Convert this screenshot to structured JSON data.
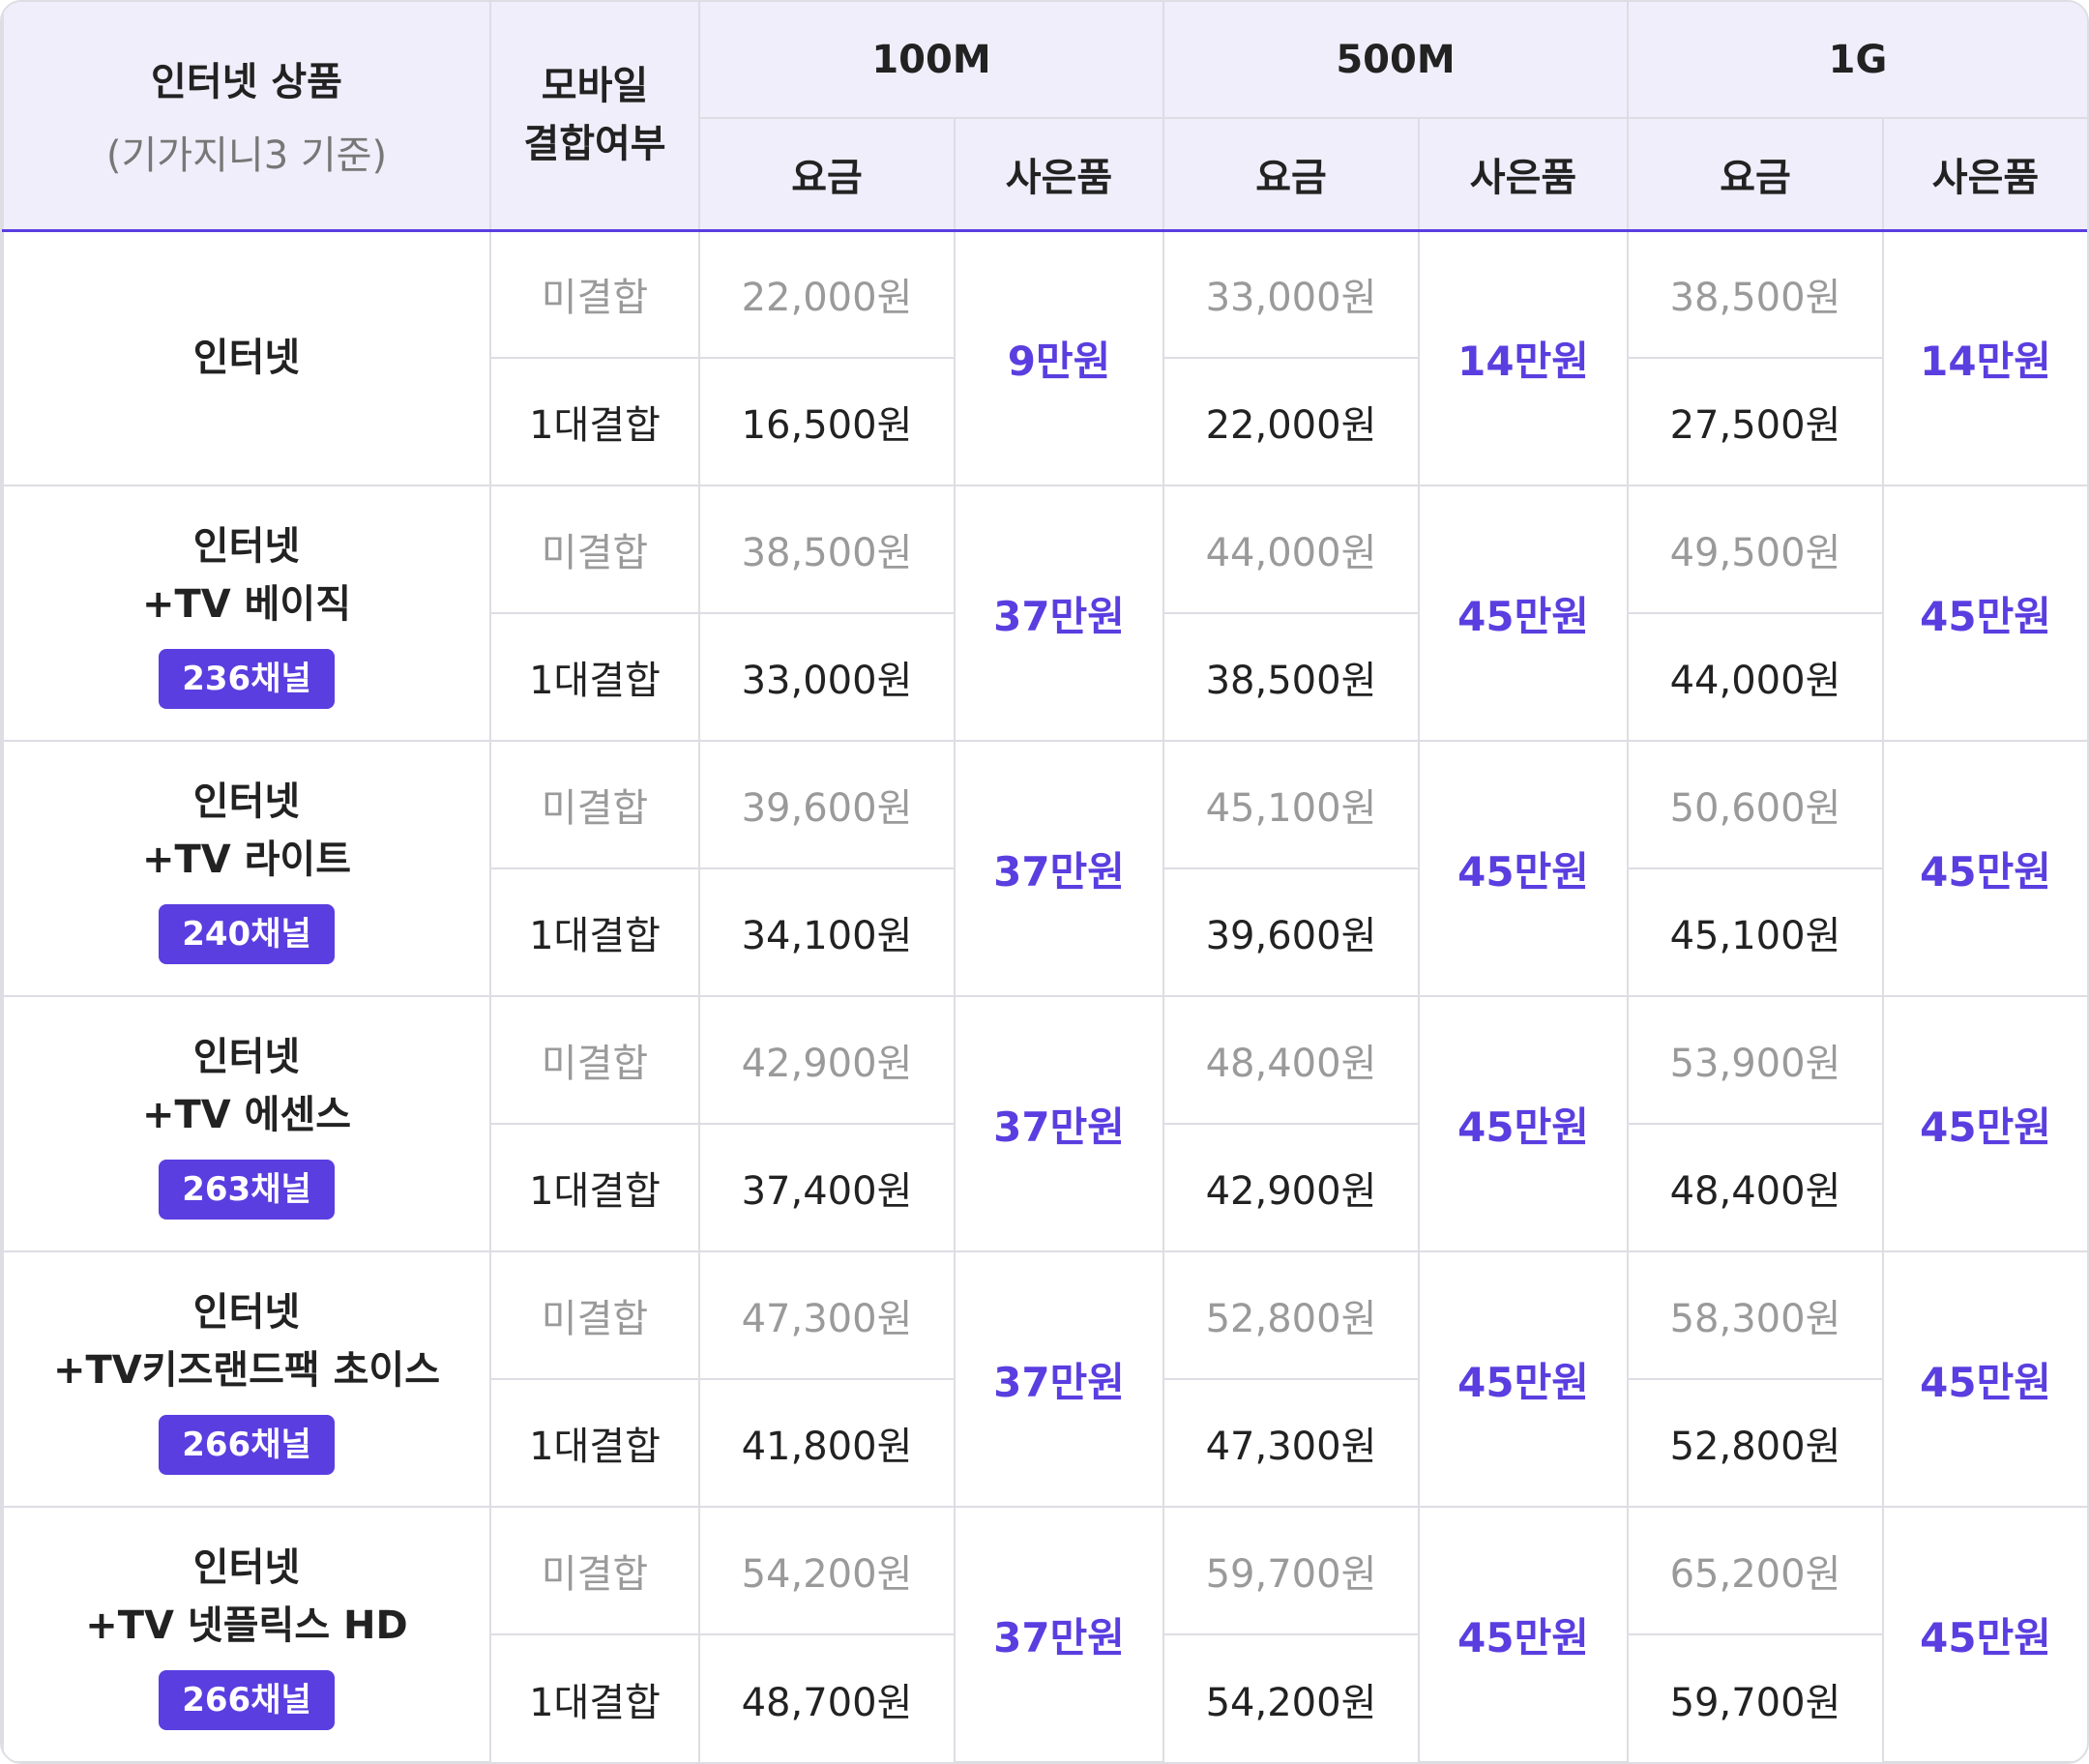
{
  "header": {
    "product_title": "인터넷 상품",
    "product_subtitle": "(기가지니3 기준)",
    "combo_title_line1": "모바일",
    "combo_title_line2": "결합여부",
    "speeds": [
      "100M",
      "500M",
      "1G"
    ],
    "fee_label": "요금",
    "gift_label": "사은품"
  },
  "accent_color": "#5a3ee0",
  "combo_labels": {
    "none": "미결합",
    "one": "1대결합"
  },
  "rows": [
    {
      "name_line1": "인터넷",
      "name_line2": "",
      "channels": "",
      "plans": [
        {
          "fee_none": "22,000원",
          "fee_one": "16,500원",
          "gift": "9만원"
        },
        {
          "fee_none": "33,000원",
          "fee_one": "22,000원",
          "gift": "14만원"
        },
        {
          "fee_none": "38,500원",
          "fee_one": "27,500원",
          "gift": "14만원"
        }
      ]
    },
    {
      "name_line1": "인터넷",
      "name_line2": "+TV 베이직",
      "channels": "236채널",
      "plans": [
        {
          "fee_none": "38,500원",
          "fee_one": "33,000원",
          "gift": "37만원"
        },
        {
          "fee_none": "44,000원",
          "fee_one": "38,500원",
          "gift": "45만원"
        },
        {
          "fee_none": "49,500원",
          "fee_one": "44,000원",
          "gift": "45만원"
        }
      ]
    },
    {
      "name_line1": "인터넷",
      "name_line2": "+TV 라이트",
      "channels": "240채널",
      "plans": [
        {
          "fee_none": "39,600원",
          "fee_one": "34,100원",
          "gift": "37만원"
        },
        {
          "fee_none": "45,100원",
          "fee_one": "39,600원",
          "gift": "45만원"
        },
        {
          "fee_none": "50,600원",
          "fee_one": "45,100원",
          "gift": "45만원"
        }
      ]
    },
    {
      "name_line1": "인터넷",
      "name_line2": "+TV 에센스",
      "channels": "263채널",
      "plans": [
        {
          "fee_none": "42,900원",
          "fee_one": "37,400원",
          "gift": "37만원"
        },
        {
          "fee_none": "48,400원",
          "fee_one": "42,900원",
          "gift": "45만원"
        },
        {
          "fee_none": "53,900원",
          "fee_one": "48,400원",
          "gift": "45만원"
        }
      ]
    },
    {
      "name_line1": "인터넷",
      "name_line2": "+TV키즈랜드팩 초이스",
      "channels": "266채널",
      "plans": [
        {
          "fee_none": "47,300원",
          "fee_one": "41,800원",
          "gift": "37만원"
        },
        {
          "fee_none": "52,800원",
          "fee_one": "47,300원",
          "gift": "45만원"
        },
        {
          "fee_none": "58,300원",
          "fee_one": "52,800원",
          "gift": "45만원"
        }
      ]
    },
    {
      "name_line1": "인터넷",
      "name_line2": "+TV 넷플릭스 HD",
      "channels": "266채널",
      "plans": [
        {
          "fee_none": "54,200원",
          "fee_one": "48,700원",
          "gift": "37만원"
        },
        {
          "fee_none": "59,700원",
          "fee_one": "54,200원",
          "gift": "45만원"
        },
        {
          "fee_none": "65,200원",
          "fee_one": "59,700원",
          "gift": "45만원"
        }
      ]
    }
  ]
}
